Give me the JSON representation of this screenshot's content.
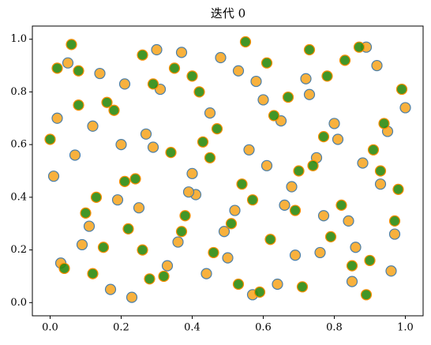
{
  "chart_data": {
    "type": "scatter",
    "title": "迭代 0",
    "xlim": [
      -0.05,
      1.05
    ],
    "ylim": [
      -0.05,
      1.05
    ],
    "xticks": [
      {
        "value": 0,
        "label": "0.0"
      },
      0.2,
      0.4,
      0.6,
      0.8,
      {
        "value": 1,
        "label": "1.0"
      }
    ],
    "yticks": [
      {
        "value": 0,
        "label": "0.0"
      },
      0.2,
      0.4,
      0.6,
      0.8,
      {
        "value": 1,
        "label": "1.0"
      }
    ],
    "series": [
      {
        "color": "#f7a928",
        "edgecolor": "#4a7ea8",
        "x": [
          0.01,
          0.05,
          0.09,
          0.12,
          0.17,
          0.21,
          0.25,
          0.29,
          0.33,
          0.37,
          0.41,
          0.45,
          0.49,
          0.53,
          0.57,
          0.61,
          0.65,
          0.69,
          0.73,
          0.77,
          0.81,
          0.85,
          0.89,
          0.93,
          0.97,
          1.0,
          0.03,
          0.07,
          0.14,
          0.19,
          0.23,
          0.27,
          0.31,
          0.36,
          0.4,
          0.44,
          0.48,
          0.52,
          0.56,
          0.6,
          0.64,
          0.68,
          0.72,
          0.76,
          0.8,
          0.84,
          0.88,
          0.92,
          0.96,
          0.02,
          0.11,
          0.2,
          0.3,
          0.39,
          0.5,
          0.58,
          0.66,
          0.75,
          0.86,
          0.95
        ],
        "values": [
          0.48,
          0.91,
          0.22,
          0.67,
          0.05,
          0.83,
          0.36,
          0.59,
          0.14,
          0.95,
          0.41,
          0.72,
          0.27,
          0.88,
          0.03,
          0.52,
          0.69,
          0.18,
          0.79,
          0.33,
          0.62,
          0.08,
          0.97,
          0.45,
          0.26,
          0.74,
          0.15,
          0.56,
          0.87,
          0.39,
          0.02,
          0.64,
          0.81,
          0.23,
          0.49,
          0.11,
          0.93,
          0.35,
          0.58,
          0.77,
          0.07,
          0.44,
          0.85,
          0.19,
          0.68,
          0.31,
          0.53,
          0.9,
          0.12,
          0.7,
          0.29,
          0.6,
          0.96,
          0.42,
          0.17,
          0.84,
          0.37,
          0.55,
          0.21,
          0.65
        ]
      },
      {
        "color": "#2e8b10",
        "edgecolor": "#ff8c00",
        "x": [
          0.0,
          0.04,
          0.08,
          0.13,
          0.16,
          0.22,
          0.26,
          0.28,
          0.34,
          0.38,
          0.42,
          0.46,
          0.47,
          0.54,
          0.55,
          0.62,
          0.63,
          0.7,
          0.71,
          0.78,
          0.82,
          0.83,
          0.9,
          0.91,
          0.98,
          0.99,
          0.06,
          0.1,
          0.15,
          0.18,
          0.24,
          0.32,
          0.35,
          0.43,
          0.51,
          0.59,
          0.67,
          0.74,
          0.79,
          0.87,
          0.94,
          0.02,
          0.12,
          0.21,
          0.29,
          0.37,
          0.45,
          0.53,
          0.61,
          0.69,
          0.77,
          0.85,
          0.93,
          0.08,
          0.26,
          0.4,
          0.57,
          0.73,
          0.89,
          0.97
        ],
        "values": [
          0.62,
          0.13,
          0.88,
          0.4,
          0.76,
          0.28,
          0.94,
          0.09,
          0.57,
          0.33,
          0.8,
          0.19,
          0.66,
          0.45,
          0.99,
          0.24,
          0.71,
          0.5,
          0.06,
          0.86,
          0.37,
          0.92,
          0.16,
          0.58,
          0.43,
          0.81,
          0.98,
          0.34,
          0.21,
          0.73,
          0.47,
          0.1,
          0.89,
          0.61,
          0.3,
          0.04,
          0.78,
          0.52,
          0.25,
          0.97,
          0.68,
          0.89,
          0.11,
          0.46,
          0.83,
          0.27,
          0.55,
          0.07,
          0.91,
          0.35,
          0.63,
          0.14,
          0.5,
          0.75,
          0.2,
          0.86,
          0.39,
          0.96,
          0.03,
          0.31
        ]
      }
    ]
  }
}
